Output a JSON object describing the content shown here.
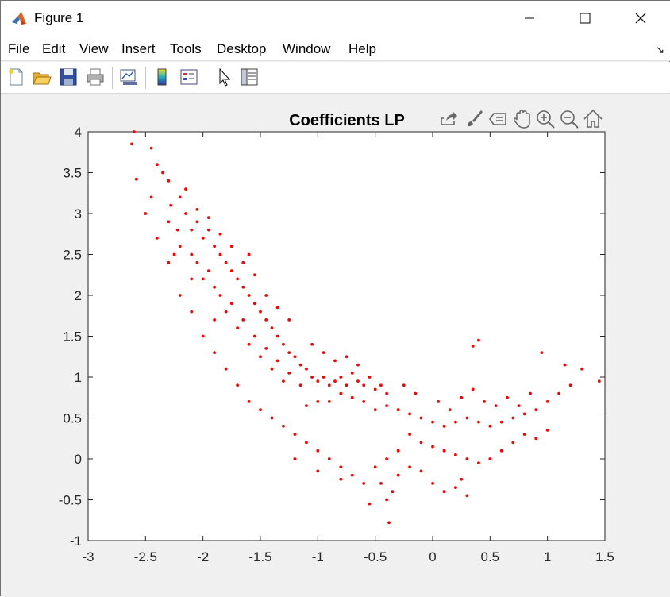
{
  "window": {
    "title": "Figure 1",
    "icon": "matlab-icon",
    "controls": [
      "minimize-icon",
      "maximize-icon",
      "close-icon"
    ]
  },
  "menu": {
    "items": [
      "File",
      "Edit",
      "View",
      "Insert",
      "Tools",
      "Desktop",
      "Window",
      "Help"
    ]
  },
  "toolbar": {
    "buttons": [
      "new-figure-icon",
      "open-file-icon",
      "save-icon",
      "print-icon",
      "link-plot-icon",
      "insert-colorbar-icon",
      "insert-legend-icon",
      "edit-plot-icon",
      "property-inspector-icon"
    ]
  },
  "axes_toolbar": {
    "buttons": [
      "export-icon",
      "brush-icon",
      "data-tips-icon",
      "pan-icon",
      "zoom-in-icon",
      "zoom-out-icon",
      "restore-view-icon"
    ]
  },
  "colors": {
    "points": "#ff0000",
    "axes_bg": "#ffffff",
    "figure_bg": "#f0f0f0"
  },
  "chart_data": {
    "type": "scatter",
    "title": "Coefficients LP",
    "xlabel": "",
    "ylabel": "",
    "xlim": [
      -3,
      1.5
    ],
    "ylim": [
      -1,
      4
    ],
    "xticks": [
      "-3",
      "-2.5",
      "-2",
      "-1.5",
      "-1",
      "-0.5",
      "0",
      "0.5",
      "1",
      "1.5"
    ],
    "yticks": [
      "-1",
      "-0.5",
      "0",
      "0.5",
      "1",
      "1.5",
      "2",
      "2.5",
      "3",
      "3.5",
      "4"
    ],
    "grid": false,
    "series": [
      {
        "color": "#ff0000",
        "points": [
          [
            -2.62,
            3.85
          ],
          [
            -2.58,
            3.42
          ],
          [
            -2.6,
            4.0
          ],
          [
            -2.45,
            3.8
          ],
          [
            -2.4,
            3.6
          ],
          [
            -2.35,
            3.5
          ],
          [
            -2.3,
            3.4
          ],
          [
            -2.45,
            3.2
          ],
          [
            -2.28,
            3.1
          ],
          [
            -2.2,
            3.2
          ],
          [
            -2.3,
            2.9
          ],
          [
            -2.22,
            2.8
          ],
          [
            -2.15,
            3.0
          ],
          [
            -2.1,
            2.8
          ],
          [
            -2.05,
            2.9
          ],
          [
            -2.2,
            2.6
          ],
          [
            -2.1,
            2.5
          ],
          [
            -2.0,
            2.7
          ],
          [
            -1.95,
            2.8
          ],
          [
            -2.25,
            2.5
          ],
          [
            -2.05,
            2.4
          ],
          [
            -1.9,
            2.6
          ],
          [
            -1.85,
            2.5
          ],
          [
            -2.0,
            2.2
          ],
          [
            -1.95,
            2.3
          ],
          [
            -1.8,
            2.4
          ],
          [
            -1.75,
            2.3
          ],
          [
            -2.1,
            2.2
          ],
          [
            -1.9,
            2.1
          ],
          [
            -1.7,
            2.2
          ],
          [
            -1.65,
            2.1
          ],
          [
            -1.85,
            2.0
          ],
          [
            -1.75,
            1.9
          ],
          [
            -1.6,
            2.0
          ],
          [
            -1.55,
            1.9
          ],
          [
            -1.8,
            1.8
          ],
          [
            -1.65,
            1.7
          ],
          [
            -1.5,
            1.8
          ],
          [
            -1.45,
            1.7
          ],
          [
            -1.7,
            1.6
          ],
          [
            -1.55,
            1.5
          ],
          [
            -1.4,
            1.6
          ],
          [
            -1.35,
            1.5
          ],
          [
            -1.6,
            1.4
          ],
          [
            -1.45,
            1.35
          ],
          [
            -1.3,
            1.4
          ],
          [
            -1.25,
            1.3
          ],
          [
            -1.5,
            1.25
          ],
          [
            -1.35,
            1.2
          ],
          [
            -1.2,
            1.25
          ],
          [
            -1.15,
            1.15
          ],
          [
            -1.4,
            1.1
          ],
          [
            -1.25,
            1.05
          ],
          [
            -1.1,
            1.1
          ],
          [
            -1.05,
            1.0
          ],
          [
            -1.3,
            0.95
          ],
          [
            -1.15,
            0.9
          ],
          [
            -1.0,
            0.95
          ],
          [
            -0.95,
            1.0
          ],
          [
            -0.9,
            0.9
          ],
          [
            -0.85,
            0.95
          ],
          [
            -0.8,
            1.0
          ],
          [
            -0.75,
            0.9
          ],
          [
            -0.7,
            1.05
          ],
          [
            -0.65,
            0.95
          ],
          [
            -0.6,
            0.9
          ],
          [
            -0.55,
            1.0
          ],
          [
            -0.5,
            0.85
          ],
          [
            -0.45,
            0.9
          ],
          [
            -0.4,
            0.8
          ],
          [
            -0.6,
            0.7
          ],
          [
            -0.7,
            0.75
          ],
          [
            -0.8,
            0.8
          ],
          [
            -0.9,
            0.7
          ],
          [
            -1.0,
            0.7
          ],
          [
            -1.1,
            0.65
          ],
          [
            -0.5,
            0.6
          ],
          [
            -0.4,
            0.65
          ],
          [
            -0.3,
            0.6
          ],
          [
            -0.2,
            0.55
          ],
          [
            -0.1,
            0.5
          ],
          [
            0.0,
            0.45
          ],
          [
            0.1,
            0.4
          ],
          [
            0.2,
            0.45
          ],
          [
            0.3,
            0.5
          ],
          [
            0.4,
            0.45
          ],
          [
            0.5,
            0.4
          ],
          [
            0.6,
            0.45
          ],
          [
            0.7,
            0.5
          ],
          [
            0.8,
            0.55
          ],
          [
            0.9,
            0.6
          ],
          [
            1.0,
            0.7
          ],
          [
            1.1,
            0.8
          ],
          [
            1.2,
            0.9
          ],
          [
            1.3,
            1.1
          ],
          [
            1.45,
            0.95
          ],
          [
            1.15,
            1.15
          ],
          [
            0.95,
            1.3
          ],
          [
            0.4,
            1.45
          ],
          [
            0.35,
            1.38
          ],
          [
            -0.2,
            0.3
          ],
          [
            -0.1,
            0.2
          ],
          [
            0.0,
            0.15
          ],
          [
            0.1,
            0.1
          ],
          [
            0.2,
            0.05
          ],
          [
            0.3,
            0.0
          ],
          [
            0.4,
            -0.05
          ],
          [
            0.5,
            0.0
          ],
          [
            0.6,
            0.1
          ],
          [
            0.7,
            0.2
          ],
          [
            0.8,
            0.3
          ],
          [
            0.9,
            0.25
          ],
          [
            1.0,
            0.35
          ],
          [
            -0.3,
            0.1
          ],
          [
            -0.4,
            0.0
          ],
          [
            -0.5,
            -0.1
          ],
          [
            -0.45,
            -0.3
          ],
          [
            -0.4,
            -0.5
          ],
          [
            -0.35,
            -0.4
          ],
          [
            -0.3,
            -0.2
          ],
          [
            -0.2,
            -0.1
          ],
          [
            -0.1,
            -0.15
          ],
          [
            0.0,
            -0.3
          ],
          [
            0.1,
            -0.4
          ],
          [
            0.2,
            -0.35
          ],
          [
            0.3,
            -0.45
          ],
          [
            0.25,
            -0.25
          ],
          [
            -0.55,
            -0.55
          ],
          [
            -0.38,
            -0.78
          ],
          [
            -0.6,
            -0.3
          ],
          [
            -0.7,
            -0.2
          ],
          [
            -0.8,
            -0.1
          ],
          [
            -0.9,
            0.0
          ],
          [
            -1.0,
            0.1
          ],
          [
            -1.1,
            0.2
          ],
          [
            -1.2,
            0.3
          ],
          [
            -1.3,
            0.4
          ],
          [
            -1.4,
            0.5
          ],
          [
            -1.5,
            0.6
          ],
          [
            -1.6,
            0.7
          ],
          [
            -1.7,
            0.9
          ],
          [
            -1.8,
            1.1
          ],
          [
            -1.9,
            1.3
          ],
          [
            -2.0,
            1.5
          ],
          [
            -2.1,
            1.8
          ],
          [
            -2.2,
            2.0
          ],
          [
            -2.3,
            2.4
          ],
          [
            -2.4,
            2.7
          ],
          [
            -2.5,
            3.0
          ],
          [
            -1.2,
            0.0
          ],
          [
            -1.0,
            -0.15
          ],
          [
            -0.8,
            -0.25
          ],
          [
            0.45,
            0.7
          ],
          [
            0.55,
            0.65
          ],
          [
            0.65,
            0.75
          ],
          [
            0.75,
            0.65
          ],
          [
            0.85,
            0.8
          ],
          [
            -0.25,
            0.9
          ],
          [
            -0.15,
            0.8
          ],
          [
            0.05,
            0.7
          ],
          [
            0.15,
            0.6
          ],
          [
            0.25,
            0.75
          ],
          [
            0.35,
            0.85
          ],
          [
            -1.05,
            1.4
          ],
          [
            -0.95,
            1.3
          ],
          [
            -0.85,
            1.2
          ],
          [
            -0.75,
            1.25
          ],
          [
            -0.65,
            1.15
          ],
          [
            -1.35,
            1.85
          ],
          [
            -1.25,
            1.7
          ],
          [
            -1.45,
            2.0
          ],
          [
            -1.55,
            2.25
          ],
          [
            -1.65,
            2.4
          ],
          [
            -1.75,
            2.6
          ],
          [
            -1.85,
            2.75
          ],
          [
            -1.95,
            2.95
          ],
          [
            -2.05,
            3.05
          ],
          [
            -2.15,
            3.3
          ],
          [
            -1.6,
            2.5
          ],
          [
            -1.9,
            1.7
          ]
        ]
      }
    ]
  }
}
